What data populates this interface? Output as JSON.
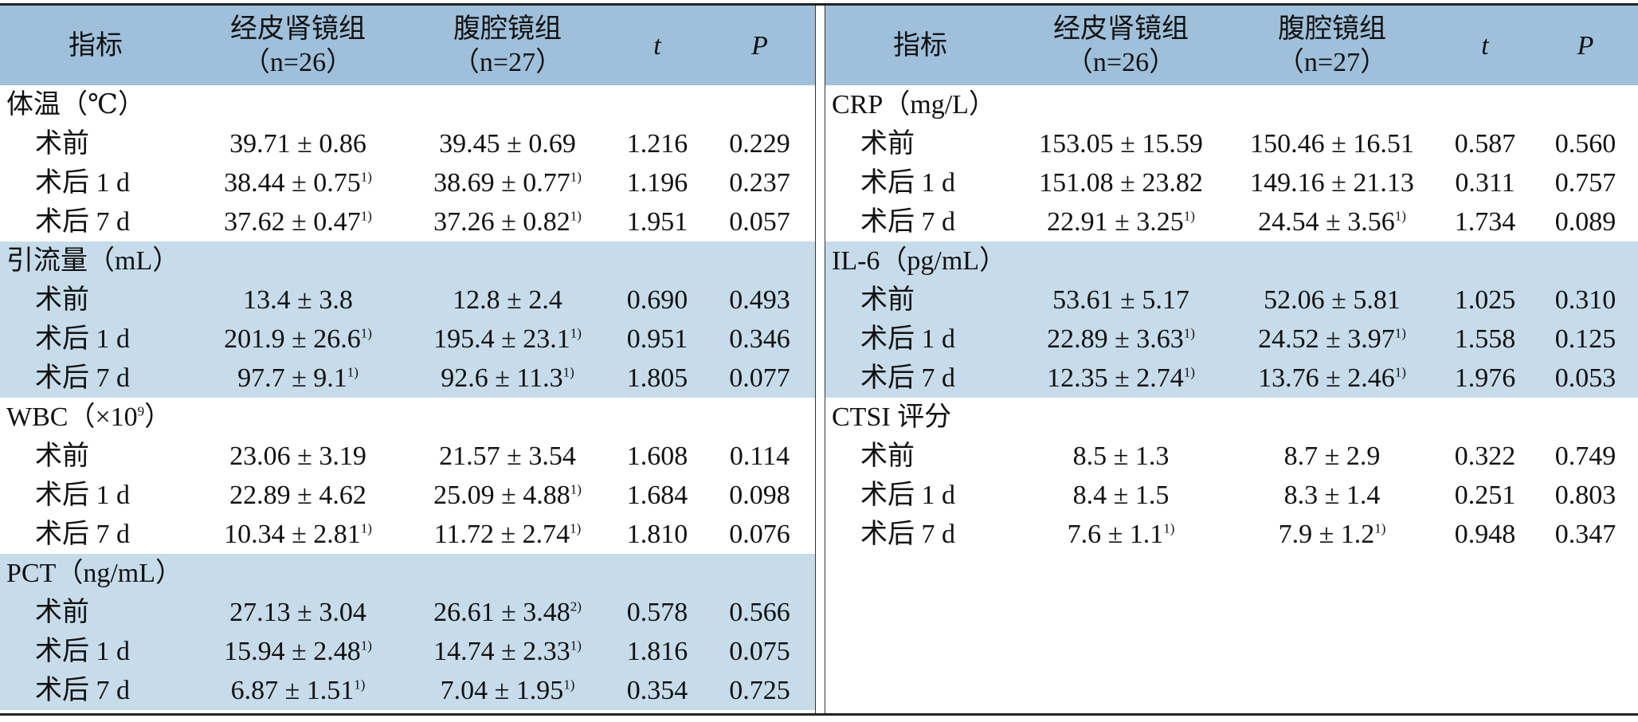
{
  "columns": {
    "indicator": "指标",
    "group1": "经皮肾镜组",
    "group1_n": "（n=26）",
    "group2": "腹腔镜组",
    "group2_n": "（n=27）",
    "t": "t",
    "p": "P"
  },
  "left_sections": [
    {
      "title": "体温（℃）",
      "rows": [
        {
          "label": "术前",
          "g1": "39.71 ± 0.86",
          "g1_note": "",
          "g2": "39.45 ± 0.69",
          "g2_note": "",
          "t": "1.216",
          "p": "0.229"
        },
        {
          "label": "术后 1 d",
          "g1": "38.44 ± 0.75",
          "g1_note": "1)",
          "g2": "38.69 ± 0.77",
          "g2_note": "1)",
          "t": "1.196",
          "p": "0.237"
        },
        {
          "label": "术后 7 d",
          "g1": "37.62 ± 0.47",
          "g1_note": "1)",
          "g2": "37.26 ± 0.82",
          "g2_note": "1)",
          "t": "1.951",
          "p": "0.057"
        }
      ]
    },
    {
      "title": "引流量（mL）",
      "rows": [
        {
          "label": "术前",
          "g1": "13.4 ± 3.8",
          "g1_note": "",
          "g2": "12.8 ± 2.4",
          "g2_note": "",
          "t": "0.690",
          "p": "0.493"
        },
        {
          "label": "术后 1 d",
          "g1": "201.9 ± 26.6",
          "g1_note": "1)",
          "g2": "195.4 ± 23.1",
          "g2_note": "1)",
          "t": "0.951",
          "p": "0.346"
        },
        {
          "label": "术后 7 d",
          "g1": "97.7 ± 9.1",
          "g1_note": "1)",
          "g2": "92.6 ± 11.3",
          "g2_note": "1)",
          "t": "1.805",
          "p": "0.077"
        }
      ]
    },
    {
      "title": "WBC（×10",
      "title_sup": "9",
      "title_end": "）",
      "rows": [
        {
          "label": "术前",
          "g1": "23.06 ± 3.19",
          "g1_note": "",
          "g2": "21.57 ± 3.54",
          "g2_note": "",
          "t": "1.608",
          "p": "0.114"
        },
        {
          "label": "术后 1 d",
          "g1": "22.89 ± 4.62",
          "g1_note": "",
          "g2": "25.09 ± 4.88",
          "g2_note": "1)",
          "t": "1.684",
          "p": "0.098"
        },
        {
          "label": "术后 7 d",
          "g1": "10.34 ± 2.81",
          "g1_note": "1)",
          "g2": "11.72 ± 2.74",
          "g2_note": "1)",
          "t": "1.810",
          "p": "0.076"
        }
      ]
    },
    {
      "title": "PCT（ng/mL）",
      "rows": [
        {
          "label": "术前",
          "g1": "27.13 ± 3.04",
          "g1_note": "",
          "g2": "26.61 ± 3.48",
          "g2_note": "2)",
          "t": "0.578",
          "p": "0.566"
        },
        {
          "label": "术后 1 d",
          "g1": "15.94 ± 2.48",
          "g1_note": "1)",
          "g2": "14.74 ± 2.33",
          "g2_note": "1)",
          "t": "1.816",
          "p": "0.075"
        },
        {
          "label": "术后 7 d",
          "g1": "6.87 ± 1.51",
          "g1_note": "1)",
          "g2": "7.04 ± 1.95",
          "g2_note": "1)",
          "t": "0.354",
          "p": "0.725"
        }
      ]
    }
  ],
  "right_sections": [
    {
      "title": "CRP（mg/L）",
      "rows": [
        {
          "label": "术前",
          "g1": "153.05 ± 15.59",
          "g1_note": "",
          "g2": "150.46 ± 16.51",
          "g2_note": "",
          "t": "0.587",
          "p": "0.560"
        },
        {
          "label": "术后 1 d",
          "g1": "151.08 ± 23.82",
          "g1_note": "",
          "g2": "149.16 ± 21.13",
          "g2_note": "",
          "t": "0.311",
          "p": "0.757"
        },
        {
          "label": "术后 7 d",
          "g1": "22.91 ± 3.25",
          "g1_note": "1)",
          "g2": "24.54 ± 3.56",
          "g2_note": "1)",
          "t": "1.734",
          "p": "0.089"
        }
      ]
    },
    {
      "title": "IL-6（pg/mL）",
      "rows": [
        {
          "label": "术前",
          "g1": "53.61 ± 5.17",
          "g1_note": "",
          "g2": "52.06 ± 5.81",
          "g2_note": "",
          "t": "1.025",
          "p": "0.310"
        },
        {
          "label": "术后 1 d",
          "g1": "22.89 ± 3.63",
          "g1_note": "1)",
          "g2": "24.52 ± 3.97",
          "g2_note": "1)",
          "t": "1.558",
          "p": "0.125"
        },
        {
          "label": "术后 7 d",
          "g1": "12.35 ± 2.74",
          "g1_note": "1)",
          "g2": "13.76 ± 2.46",
          "g2_note": "1)",
          "t": "1.976",
          "p": "0.053"
        }
      ]
    },
    {
      "title": "CTSI 评分",
      "rows": [
        {
          "label": "术前",
          "g1": "8.5 ± 1.3",
          "g1_note": "",
          "g2": "8.7 ± 2.9",
          "g2_note": "",
          "t": "0.322",
          "p": "0.749"
        },
        {
          "label": "术后 1 d",
          "g1": "8.4 ± 1.5",
          "g1_note": "",
          "g2": "8.3 ± 1.4",
          "g2_note": "",
          "t": "0.251",
          "p": "0.803"
        },
        {
          "label": "术后 7 d",
          "g1": "7.6 ± 1.1",
          "g1_note": "1)",
          "g2": "7.9 ± 1.2",
          "g2_note": "1)",
          "t": "0.948",
          "p": "0.347"
        }
      ]
    }
  ],
  "colors": {
    "header_bg": "#9fc0da",
    "shade_bg": "#c7dcea",
    "rule": "#222222"
  }
}
